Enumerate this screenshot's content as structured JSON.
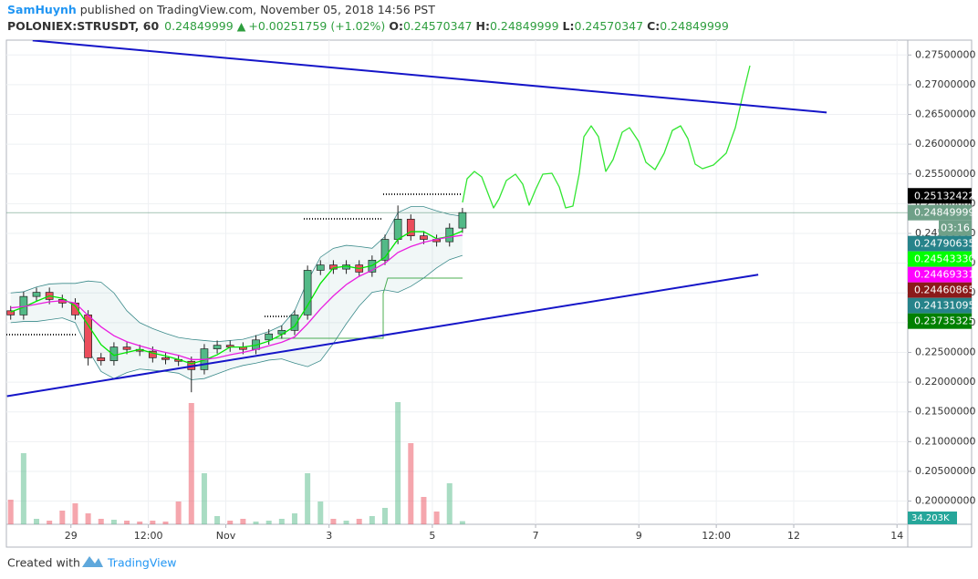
{
  "chart_data": {
    "type": "candlestick",
    "author": "SamHuynh",
    "published": "published on TradingView.com, November 05, 2018 14:56 PST",
    "symbol": "POLONIEX:STRUSDT, 60",
    "last": 0.24849999,
    "direction": "▲",
    "change": {
      "value": 0.00251759,
      "label": "+0.00251759"
    },
    "change_percent": {
      "value": 1.02,
      "label": "(+1.02%)"
    },
    "legend_fields": [
      {
        "name": "O:",
        "value": 0.24570347
      },
      {
        "name": "H:",
        "value": 0.24849999
      },
      {
        "name": "L:",
        "value": 0.24570347
      },
      {
        "name": "C:",
        "value": 0.24849999
      }
    ],
    "up_color": "#53b987",
    "down_color": "#eb4d5c",
    "x": [
      -28,
      -22,
      -16,
      -10,
      -4,
      2,
      8,
      14,
      20,
      26,
      32,
      38,
      44,
      50,
      56,
      62,
      68,
      74,
      80,
      86,
      92,
      98,
      104,
      110,
      116,
      122,
      128,
      134,
      140,
      146,
      152,
      158,
      164,
      170,
      176,
      182
    ],
    "open": [
      0.232,
      0.2313,
      0.2344,
      0.2351,
      0.2339,
      0.2333,
      0.2313,
      0.2241,
      0.2236,
      0.2259,
      0.2255,
      0.2252,
      0.2241,
      0.2238,
      0.2235,
      0.2221,
      0.2256,
      0.2262,
      0.2259,
      0.2255,
      0.2271,
      0.2281,
      0.2287,
      0.2313,
      0.2388,
      0.2397,
      0.239,
      0.2397,
      0.2385,
      0.2405,
      0.244,
      0.2474,
      0.2446,
      0.244,
      0.2436,
      0.2459
    ],
    "high": [
      0.2328,
      0.2352,
      0.2359,
      0.2359,
      0.2347,
      0.2341,
      0.2321,
      0.2249,
      0.2267,
      0.2267,
      0.2263,
      0.226,
      0.2249,
      0.2246,
      0.2243,
      0.2264,
      0.227,
      0.227,
      0.2267,
      0.2279,
      0.2289,
      0.2295,
      0.2321,
      0.2396,
      0.2405,
      0.2405,
      0.2405,
      0.2405,
      0.2413,
      0.2448,
      0.2497,
      0.2482,
      0.2454,
      0.2448,
      0.2467,
      0.2493
    ],
    "low": [
      0.2305,
      0.2305,
      0.2336,
      0.2331,
      0.2325,
      0.2305,
      0.2228,
      0.2228,
      0.2228,
      0.2247,
      0.2244,
      0.2233,
      0.223,
      0.2227,
      0.2183,
      0.2213,
      0.2248,
      0.2251,
      0.2247,
      0.2247,
      0.2263,
      0.2273,
      0.2279,
      0.2305,
      0.238,
      0.2382,
      0.2382,
      0.2377,
      0.2377,
      0.2397,
      0.2432,
      0.2438,
      0.2432,
      0.2428,
      0.2428,
      0.2451
    ],
    "close": [
      0.2313,
      0.2344,
      0.2351,
      0.2339,
      0.2333,
      0.2313,
      0.2241,
      0.2236,
      0.2259,
      0.2255,
      0.2252,
      0.2241,
      0.2238,
      0.2235,
      0.2221,
      0.2256,
      0.2262,
      0.2259,
      0.2255,
      0.2271,
      0.2281,
      0.2287,
      0.2313,
      0.2388,
      0.2397,
      0.239,
      0.2397,
      0.2385,
      0.2405,
      0.244,
      0.2474,
      0.2446,
      0.244,
      0.2436,
      0.2459,
      0.24849999
    ],
    "volume": [
      270000,
      780000,
      60000,
      40000,
      150000,
      230000,
      120000,
      60000,
      50000,
      40000,
      30000,
      40000,
      30000,
      250000,
      1330000,
      560000,
      90000,
      40000,
      60000,
      30000,
      40000,
      60000,
      120000,
      560000,
      250000,
      60000,
      40000,
      60000,
      90000,
      180000,
      1340000,
      890000,
      300000,
      140000,
      450000,
      34203
    ],
    "vlim": [
      0,
      1600000
    ],
    "volume_tag": {
      "value": 34203,
      "label": "34.203K",
      "color": "#26a69a"
    },
    "lines": [
      {
        "color": "#00e600",
        "values": [
          0.2318,
          0.2326,
          0.2336,
          0.2345,
          0.2341,
          0.2328,
          0.2296,
          0.2263,
          0.2245,
          0.225,
          0.2255,
          0.2249,
          0.2244,
          0.2238,
          0.2231,
          0.2237,
          0.2246,
          0.2259,
          0.2259,
          0.2262,
          0.2269,
          0.228,
          0.2294,
          0.2329,
          0.2366,
          0.2392,
          0.2395,
          0.2391,
          0.2396,
          0.241,
          0.244,
          0.2453,
          0.2453,
          0.2441,
          0.2445,
          0.2454
        ]
      },
      {
        "color": "#e91ee0",
        "values": [
          0.2325,
          0.2327,
          0.2331,
          0.2335,
          0.2337,
          0.2333,
          0.2312,
          0.2293,
          0.2278,
          0.2268,
          0.2261,
          0.2255,
          0.225,
          0.2245,
          0.2238,
          0.2238,
          0.2241,
          0.2246,
          0.225,
          0.2255,
          0.2261,
          0.2267,
          0.2276,
          0.2298,
          0.2323,
          0.2345,
          0.2364,
          0.2378,
          0.2388,
          0.24,
          0.2418,
          0.2428,
          0.2435,
          0.244,
          0.2444,
          0.2447
        ]
      }
    ],
    "band_color": "#3a8a8a",
    "band_upper": [
      0.235,
      0.2352,
      0.236,
      0.2365,
      0.2366,
      0.2366,
      0.237,
      0.2368,
      0.235,
      0.232,
      0.23,
      0.229,
      0.2282,
      0.2275,
      0.2272,
      0.227,
      0.2268,
      0.227,
      0.2272,
      0.2278,
      0.2285,
      0.2295,
      0.232,
      0.237,
      0.241,
      0.2425,
      0.243,
      0.2428,
      0.2425,
      0.2445,
      0.2485,
      0.2495,
      0.2495,
      0.2488,
      0.2482,
      0.2479
    ],
    "band_lower": [
      0.23,
      0.2302,
      0.2302,
      0.2305,
      0.2308,
      0.23,
      0.2254,
      0.2218,
      0.2206,
      0.2216,
      0.2222,
      0.222,
      0.2218,
      0.2215,
      0.2204,
      0.2206,
      0.2214,
      0.2222,
      0.2228,
      0.2232,
      0.2237,
      0.2239,
      0.2232,
      0.2226,
      0.2236,
      0.2265,
      0.2298,
      0.2328,
      0.2351,
      0.2355,
      0.2351,
      0.2361,
      0.2375,
      0.2392,
      0.2406,
      0.2413
    ],
    "trendlines": [
      {
        "color": "#1515c8",
        "x": [
          -17.8,
          351.3
        ],
        "y": [
          0.27745,
          0.26534
        ]
      },
      {
        "color": "#1515c8",
        "x": [
          -29.7,
          319.5
        ],
        "y": [
          0.21764,
          0.23807
        ]
      }
    ],
    "price_tags": [
      {
        "value": 0.25132422,
        "label": "0.25132422",
        "color": "#000000"
      },
      {
        "value": 0.24849999,
        "label": "0.24849999",
        "color": "#6fa088"
      },
      {
        "value": 0.24790635,
        "label": "0.24790635",
        "color": "#26838a"
      },
      {
        "value": 0.2454333,
        "label": "0.24543330",
        "color": "#00ff00"
      },
      {
        "value": 0.24469331,
        "label": "0.24469331",
        "color": "#ff00ff"
      },
      {
        "value": 0.24460865,
        "label": "0.24460865",
        "color": "#8b1a1a"
      },
      {
        "value": 0.24131095,
        "label": "0.24131095",
        "color": "#26838a"
      },
      {
        "value": 0.23735325,
        "label": "0.23735325",
        "color": "#008000"
      }
    ],
    "countdown": "03:16",
    "xlim": [
      -30,
      389
    ],
    "xticks": [
      {
        "value": 0,
        "label": "29"
      },
      {
        "value": 36,
        "label": "12:00"
      },
      {
        "value": 72,
        "label": "Nov"
      },
      {
        "value": 120,
        "label": "3"
      },
      {
        "value": 168,
        "label": "5"
      },
      {
        "value": 216,
        "label": "7"
      },
      {
        "value": 264,
        "label": "9"
      },
      {
        "value": 300,
        "label": "12:00"
      },
      {
        "value": 336,
        "label": "12"
      },
      {
        "value": 384,
        "label": "14"
      }
    ],
    "ylim": [
      0.1961,
      0.2775
    ],
    "yticks": [
      {
        "value": 0.2,
        "label": "0.20000000"
      },
      {
        "value": 0.205,
        "label": "0.20500000"
      },
      {
        "value": 0.21,
        "label": "0.21000000"
      },
      {
        "value": 0.215,
        "label": "0.21500000"
      },
      {
        "value": 0.22,
        "label": "0.22000000"
      },
      {
        "value": 0.225,
        "label": "0.22500000"
      },
      {
        "value": 0.23,
        "label": "0.23000000"
      },
      {
        "value": 0.235,
        "label": "0.23500000"
      },
      {
        "value": 0.24,
        "label": "0.24000000"
      },
      {
        "value": 0.245,
        "label": "0.24500000"
      },
      {
        "value": 0.25,
        "label": "0.25000000"
      },
      {
        "value": 0.255,
        "label": "0.25500000"
      },
      {
        "value": 0.26,
        "label": "0.26000000"
      },
      {
        "value": 0.265,
        "label": "0.26500000"
      },
      {
        "value": 0.27,
        "label": "0.27000000"
      },
      {
        "value": 0.275,
        "label": "0.27500000"
      }
    ],
    "grid": true,
    "footer_text": "Created with",
    "footer_brand": "TradingView"
  }
}
